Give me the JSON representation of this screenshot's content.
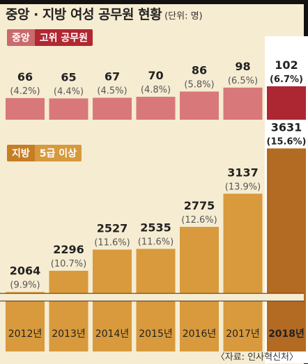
{
  "title": "중앙 · 지방 여성 공무원 현황",
  "unit": "(단위: 명)",
  "source": "〈자료: 인사혁신처〉",
  "colors": {
    "background": "#f6ecd2",
    "central": "#d9787a",
    "central_highlight": "#ac2731",
    "local": "#d89a3c",
    "local_highlight": "#b36a22"
  },
  "chart_data": [
    {
      "type": "bar",
      "panel": "central",
      "label_main": "중앙",
      "label_sub": "고위 공무원",
      "categories": [
        "2012년",
        "2013년",
        "2014년",
        "2015년",
        "2016년",
        "2017년",
        "2018년"
      ],
      "values": [
        66,
        65,
        67,
        70,
        86,
        98,
        102
      ],
      "value_labels": [
        "66",
        "65",
        "67",
        "70",
        "86",
        "98",
        "102"
      ],
      "pct_labels": [
        "(4.2%)",
        "(4.4%)",
        "(4.5%)",
        "(4.8%)",
        "(5.8%)",
        "(6.5%)",
        "(6.7%)"
      ]
    },
    {
      "type": "bar",
      "panel": "local",
      "label_main": "지방",
      "label_sub": "5급 이상",
      "categories": [
        "2012년",
        "2013년",
        "2014년",
        "2015년",
        "2016년",
        "2017년",
        "2018년"
      ],
      "values": [
        2064,
        2296,
        2527,
        2535,
        2775,
        3137,
        3631
      ],
      "value_labels": [
        "2064",
        "2296",
        "2527",
        "2535",
        "2775",
        "3137",
        "3631"
      ],
      "pct_labels": [
        "(9.9%)",
        "(10.7%)",
        "(11.6%)",
        "(11.6%)",
        "(12.6%)",
        "(13.9%)",
        "(15.6%)"
      ]
    }
  ]
}
